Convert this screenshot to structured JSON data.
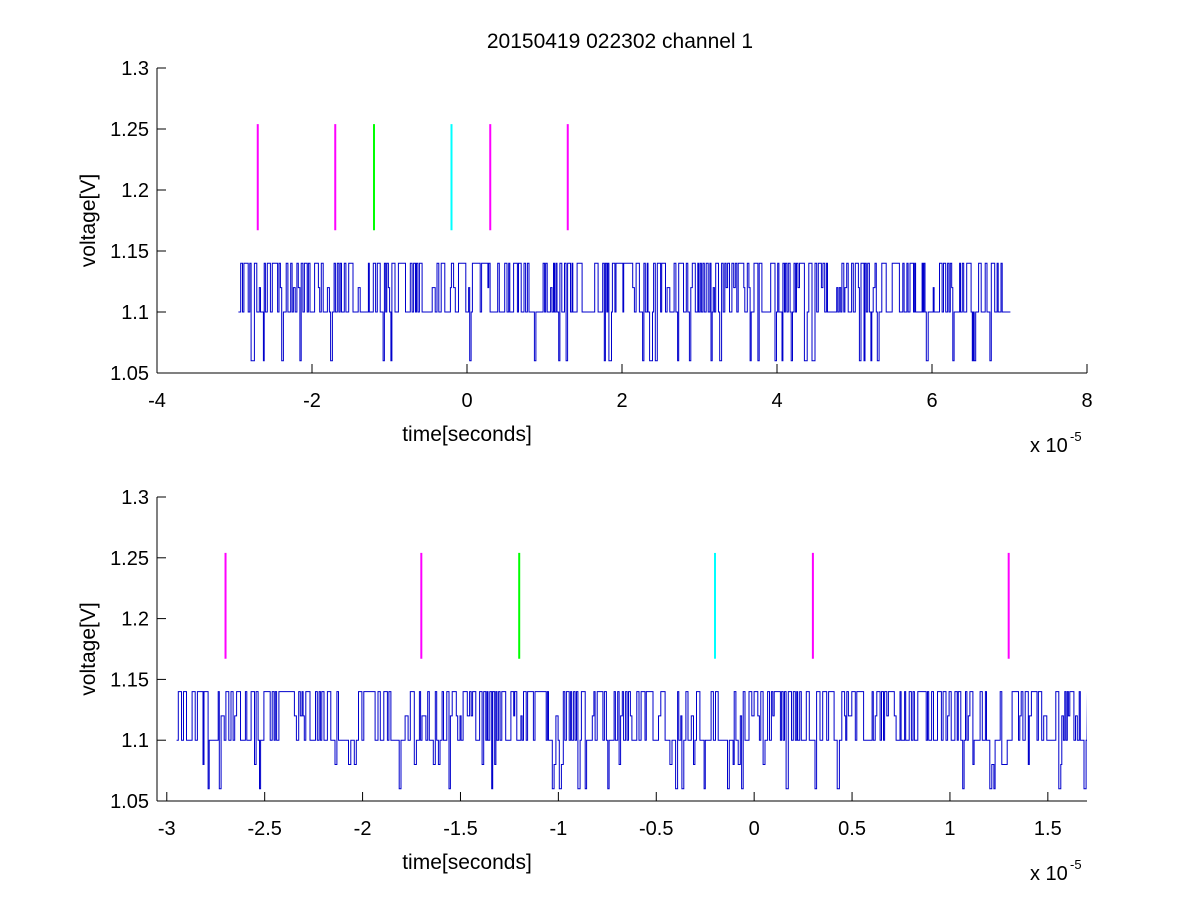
{
  "figure_title": "20150419 022302 channel 1",
  "chart_data": [
    {
      "type": "line",
      "title": "20150419 022302 channel 1",
      "xlabel": "time[seconds]",
      "ylabel": "voltage[V]",
      "x_multiplier_label": "x 10",
      "x_multiplier_exponent": "-5",
      "xlim": [
        -4,
        8
      ],
      "ylim": [
        1.05,
        1.3
      ],
      "x_ticks": [
        -4,
        -2,
        0,
        2,
        4,
        6,
        8
      ],
      "x_tick_labels": [
        "-4",
        "-2",
        "0",
        "2",
        "4",
        "6",
        "8"
      ],
      "y_ticks": [
        1.05,
        1.1,
        1.15,
        1.2,
        1.25,
        1.3
      ],
      "y_tick_labels": [
        "1.05",
        "1.1",
        "1.15",
        "1.2",
        "1.25",
        "1.3"
      ],
      "grid": false,
      "signal": {
        "color": "#0000cc",
        "x_start": -2.95,
        "x_end": 7.0,
        "levels": [
          1.06,
          1.1,
          1.12,
          1.14
        ],
        "baseline": 1.1
      },
      "markers": [
        {
          "x": -2.7,
          "y_from": 1.167,
          "y_to": 1.254,
          "color": "#ff00ff"
        },
        {
          "x": -1.7,
          "y_from": 1.167,
          "y_to": 1.254,
          "color": "#ff00ff"
        },
        {
          "x": -1.2,
          "y_from": 1.167,
          "y_to": 1.254,
          "color": "#00ff00"
        },
        {
          "x": -0.2,
          "y_from": 1.167,
          "y_to": 1.254,
          "color": "#00ffff"
        },
        {
          "x": 0.3,
          "y_from": 1.167,
          "y_to": 1.254,
          "color": "#ff00ff"
        },
        {
          "x": 1.3,
          "y_from": 1.167,
          "y_to": 1.254,
          "color": "#ff00ff"
        }
      ]
    },
    {
      "type": "line",
      "title": "",
      "xlabel": "time[seconds]",
      "ylabel": "voltage[V]",
      "x_multiplier_label": "x 10",
      "x_multiplier_exponent": "-5",
      "xlim": [
        -3.05,
        1.7
      ],
      "ylim": [
        1.05,
        1.3
      ],
      "x_ticks": [
        -3,
        -2.5,
        -2,
        -1.5,
        -1,
        -0.5,
        0,
        0.5,
        1,
        1.5
      ],
      "x_tick_labels": [
        "-3",
        "-2.5",
        "-2",
        "-1.5",
        "-1",
        "-0.5",
        "0",
        "0.5",
        "1",
        "1.5"
      ],
      "y_ticks": [
        1.05,
        1.1,
        1.15,
        1.2,
        1.25,
        1.3
      ],
      "y_tick_labels": [
        "1.05",
        "1.1",
        "1.15",
        "1.2",
        "1.25",
        "1.3"
      ],
      "grid": false,
      "signal": {
        "color": "#0000cc",
        "x_start": -2.95,
        "x_end": 1.7,
        "levels": [
          1.06,
          1.08,
          1.1,
          1.12,
          1.14
        ],
        "baseline": 1.1
      },
      "markers": [
        {
          "x": -2.7,
          "y_from": 1.167,
          "y_to": 1.254,
          "color": "#ff00ff"
        },
        {
          "x": -1.7,
          "y_from": 1.167,
          "y_to": 1.254,
          "color": "#ff00ff"
        },
        {
          "x": -1.2,
          "y_from": 1.167,
          "y_to": 1.254,
          "color": "#00ff00"
        },
        {
          "x": -0.2,
          "y_from": 1.167,
          "y_to": 1.254,
          "color": "#00ffff"
        },
        {
          "x": 0.3,
          "y_from": 1.167,
          "y_to": 1.254,
          "color": "#ff00ff"
        },
        {
          "x": 1.3,
          "y_from": 1.167,
          "y_to": 1.254,
          "color": "#ff00ff"
        }
      ]
    }
  ]
}
